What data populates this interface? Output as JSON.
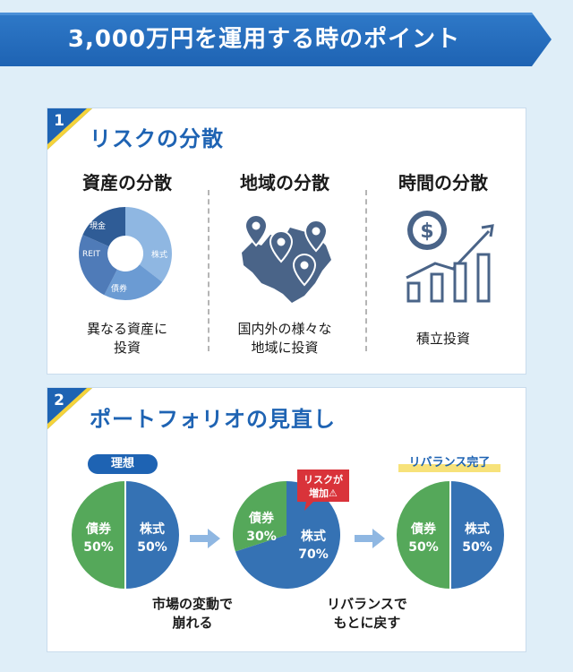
{
  "title": "3,000万円を運用する時のポイント",
  "section1": {
    "number": "1",
    "title": "リスクの分散",
    "columns": [
      {
        "heading": "資産の分散",
        "caption_line1": "異なる資産に",
        "caption_line2": "投資",
        "donut_labels": [
          "現金",
          "REIT",
          "債券",
          "株式"
        ]
      },
      {
        "heading": "地域の分散",
        "caption_line1": "国内外の様々な",
        "caption_line2": "地域に投資"
      },
      {
        "heading": "時間の分散",
        "caption_line1": "積立投資",
        "caption_line2": ""
      }
    ]
  },
  "section2": {
    "number": "2",
    "title": "ポートフォリオの見直し",
    "ideal_label": "理想",
    "done_label": "リバランス完了",
    "warning": {
      "line1": "リスクが",
      "line2": "増加⚠"
    },
    "pies": [
      {
        "bond_name": "債券",
        "bond_pct": "50%",
        "bond_share": 0.5,
        "stock_name": "株式",
        "stock_pct": "50%",
        "stock_share": 0.5
      },
      {
        "bond_name": "債券",
        "bond_pct": "30%",
        "bond_share": 0.3,
        "stock_name": "株式",
        "stock_pct": "70%",
        "stock_share": 0.7
      },
      {
        "bond_name": "債券",
        "bond_pct": "50%",
        "bond_share": 0.5,
        "stock_name": "株式",
        "stock_pct": "50%",
        "stock_share": 0.5
      }
    ],
    "caption_market_line1": "市場の変動で",
    "caption_market_line2": "崩れる",
    "caption_rebalance_line1": "リバランスで",
    "caption_rebalance_line2": "もとに戻す"
  },
  "colors": {
    "blue": "#1e63b3",
    "pie_blue": "#3572b4",
    "pie_green": "#55a85a",
    "warning_red": "#d9333a",
    "highlight_yellow": "#f7e27a"
  }
}
